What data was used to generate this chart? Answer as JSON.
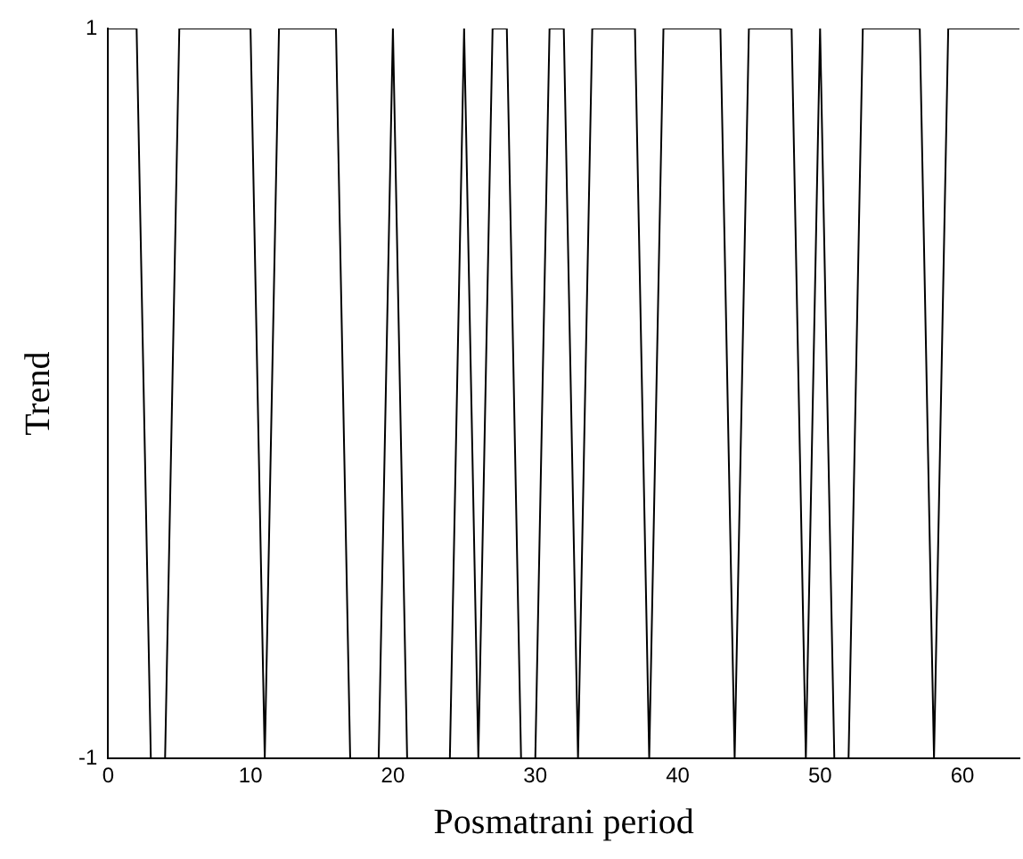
{
  "chart_data": {
    "type": "line",
    "xlabel": "Posmatrani period",
    "ylabel": "Trend",
    "x": [
      0,
      2,
      3,
      4,
      5,
      10,
      11,
      12,
      16,
      17,
      19,
      20,
      21,
      24,
      25,
      26,
      27,
      28,
      29,
      30,
      31,
      32,
      33,
      34,
      37,
      38,
      39,
      43,
      44,
      45,
      48,
      49,
      50,
      51,
      52,
      53,
      57,
      58,
      59,
      64
    ],
    "values": [
      1,
      1,
      -1,
      -1,
      1,
      1,
      -1,
      1,
      1,
      -1,
      -1,
      1,
      -1,
      -1,
      1,
      -1,
      1,
      1,
      -1,
      -1,
      1,
      1,
      -1,
      1,
      1,
      -1,
      1,
      1,
      -1,
      1,
      1,
      -1,
      1,
      -1,
      -1,
      1,
      1,
      -1,
      1,
      1
    ],
    "color": "#000000",
    "xlim": [
      0,
      64
    ],
    "xticks": [
      0,
      10,
      20,
      30,
      40,
      50,
      60
    ],
    "ylim": [
      -1,
      1
    ],
    "yticks": [
      -1,
      1
    ],
    "grid": false,
    "legend": false,
    "marker": "none",
    "line_style": "solid"
  }
}
